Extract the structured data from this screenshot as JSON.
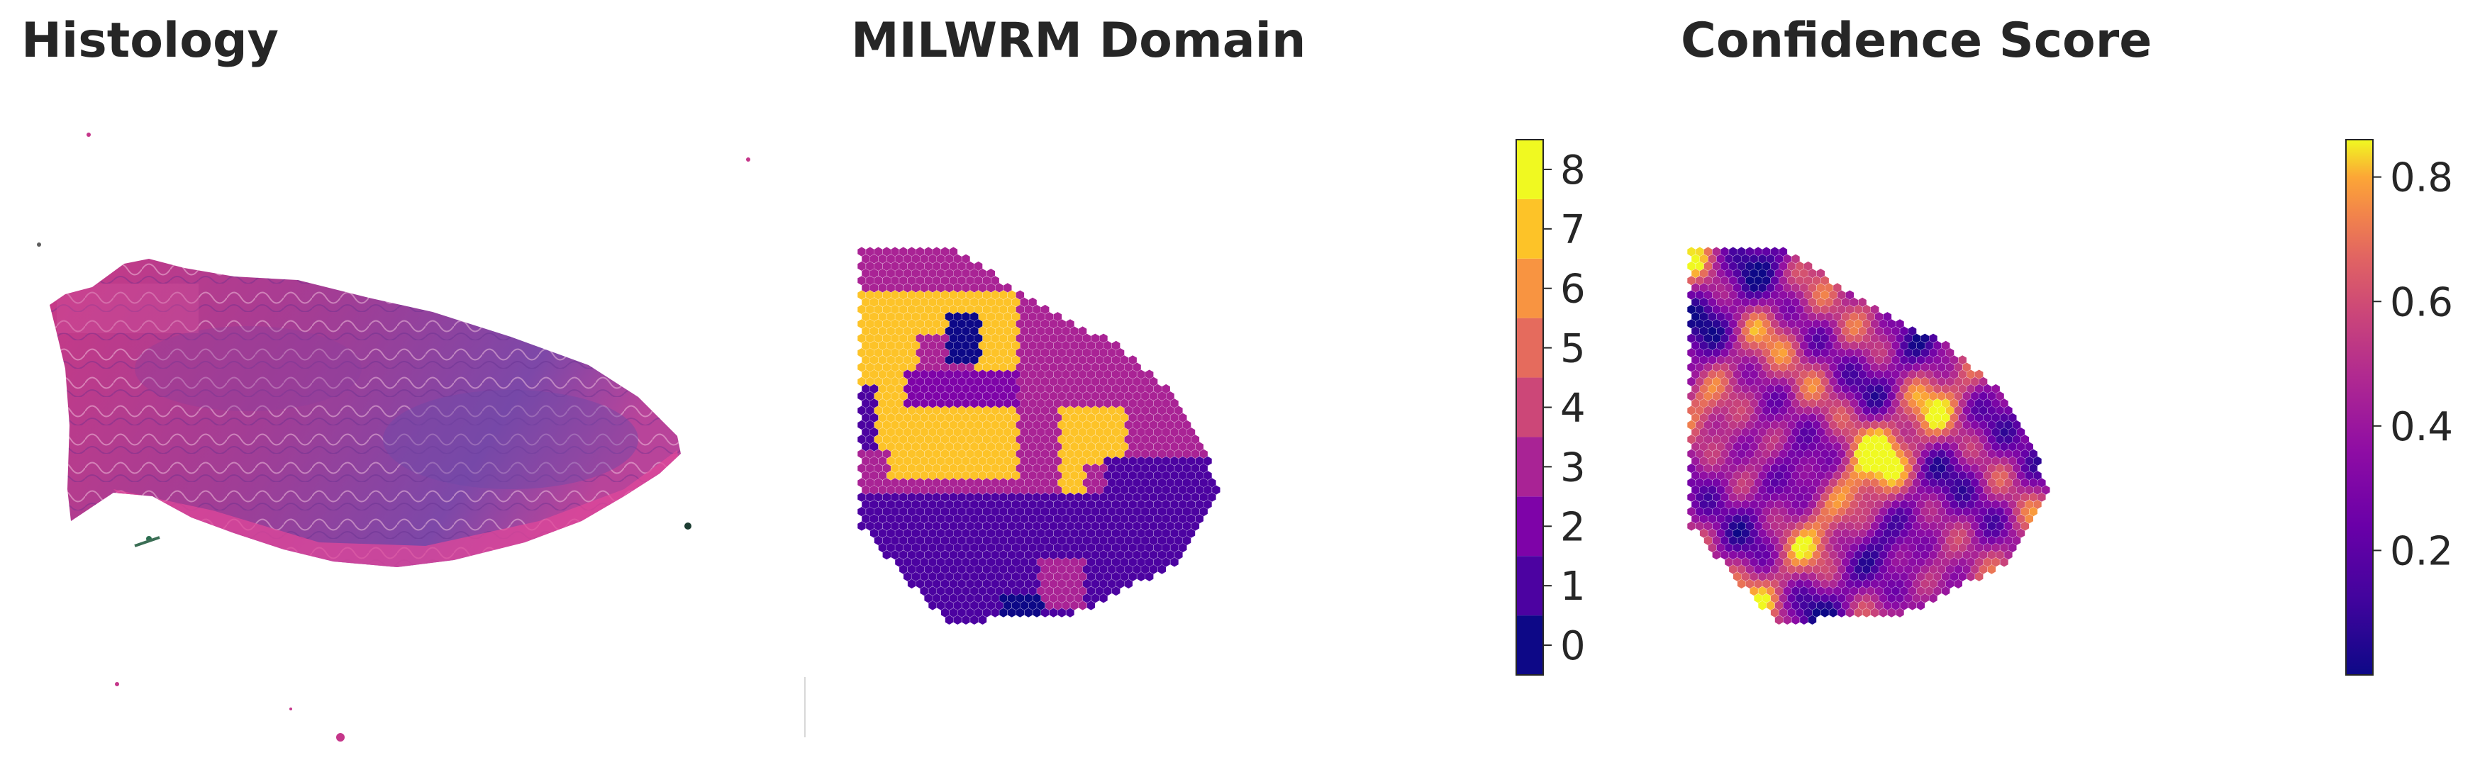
{
  "panels": {
    "histology": {
      "title": "Histology"
    },
    "domain": {
      "title": "MILWRM Domain"
    },
    "confidence": {
      "title": "Confidence Score"
    }
  },
  "chart_data": [
    {
      "type": "image",
      "title": "Histology",
      "description_colors": {
        "tissue": "#c0397f",
        "tissue_dark": "#7a3f9e",
        "tissue_edge": "#e2479a"
      }
    },
    {
      "type": "heatmap",
      "title": "MILWRM Domain",
      "colormap": "plasma (discrete, 9 levels)",
      "colorbar": {
        "ticks": [
          0,
          1,
          2,
          3,
          4,
          5,
          6,
          7,
          8
        ],
        "range": [
          -0.5,
          8.5
        ],
        "colors": [
          "#0d0887",
          "#4c02a1",
          "#7e03a8",
          "#a92395",
          "#cc4778",
          "#e56b5d",
          "#f89441",
          "#fdc328",
          "#f0f921"
        ]
      },
      "legend_placement": "right"
    },
    {
      "type": "heatmap",
      "title": "Confidence Score",
      "colormap": "plasma (continuous)",
      "colorbar": {
        "ticks": [
          0.2,
          0.4,
          0.6,
          0.8
        ],
        "range": [
          0.0,
          0.86
        ]
      },
      "legend_placement": "right"
    }
  ]
}
